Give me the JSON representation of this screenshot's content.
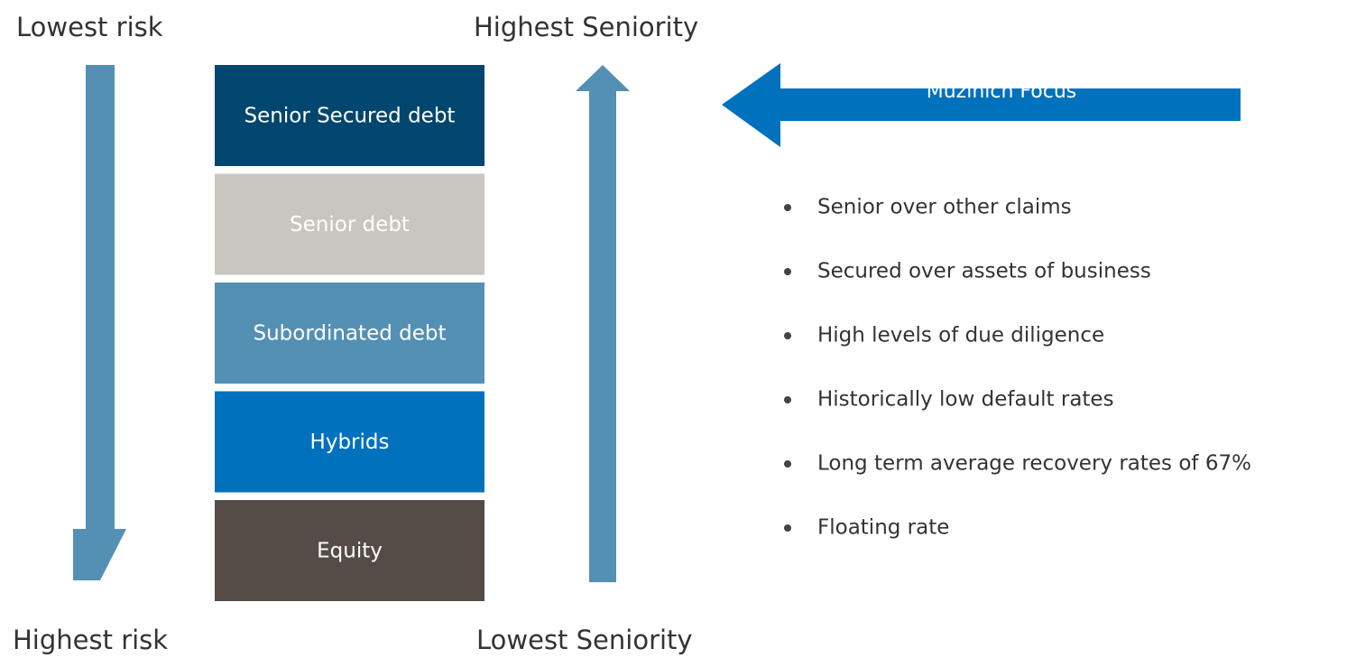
{
  "labels": {
    "lowest_risk": "Lowest risk",
    "highest_risk": "Highest risk",
    "highest_seniority": "Highest Seniority",
    "lowest_seniority": "Lowest Seniority"
  },
  "stack": [
    {
      "label": "Senior Secured debt",
      "color": "#00466e"
    },
    {
      "label": "Senior debt",
      "color": "#c9c5c0"
    },
    {
      "label": "Subordinated debt",
      "color": "#5390b3"
    },
    {
      "label": "Hybrids",
      "color": "#0071bc"
    },
    {
      "label": "Equity",
      "color": "#554b47"
    }
  ],
  "focus": "Muzinich Focus",
  "bullets": [
    "Senior over other claims",
    "Secured over assets of business",
    "High levels of due diligence",
    "Historically low default rates",
    "Long term average recovery rates of 67%",
    "Floating rate"
  ]
}
